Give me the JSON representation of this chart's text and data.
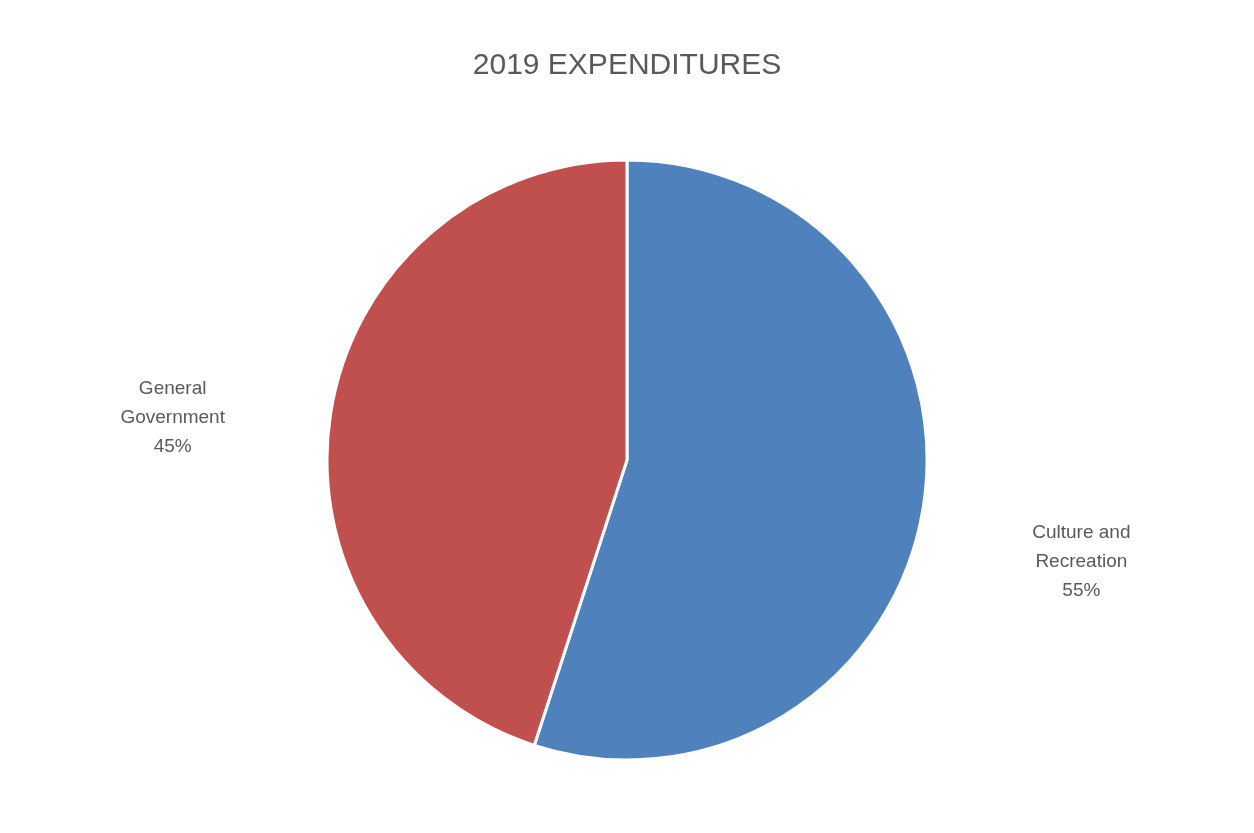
{
  "chart_data": {
    "type": "pie",
    "title": "2019 EXPENDITURES",
    "categories": [
      "Culture and Recreation",
      "General Government"
    ],
    "values": [
      55,
      45
    ],
    "colors": [
      "#4f81bd",
      "#c0504d"
    ],
    "value_labels": [
      "55%",
      "45%"
    ],
    "legend": false
  }
}
